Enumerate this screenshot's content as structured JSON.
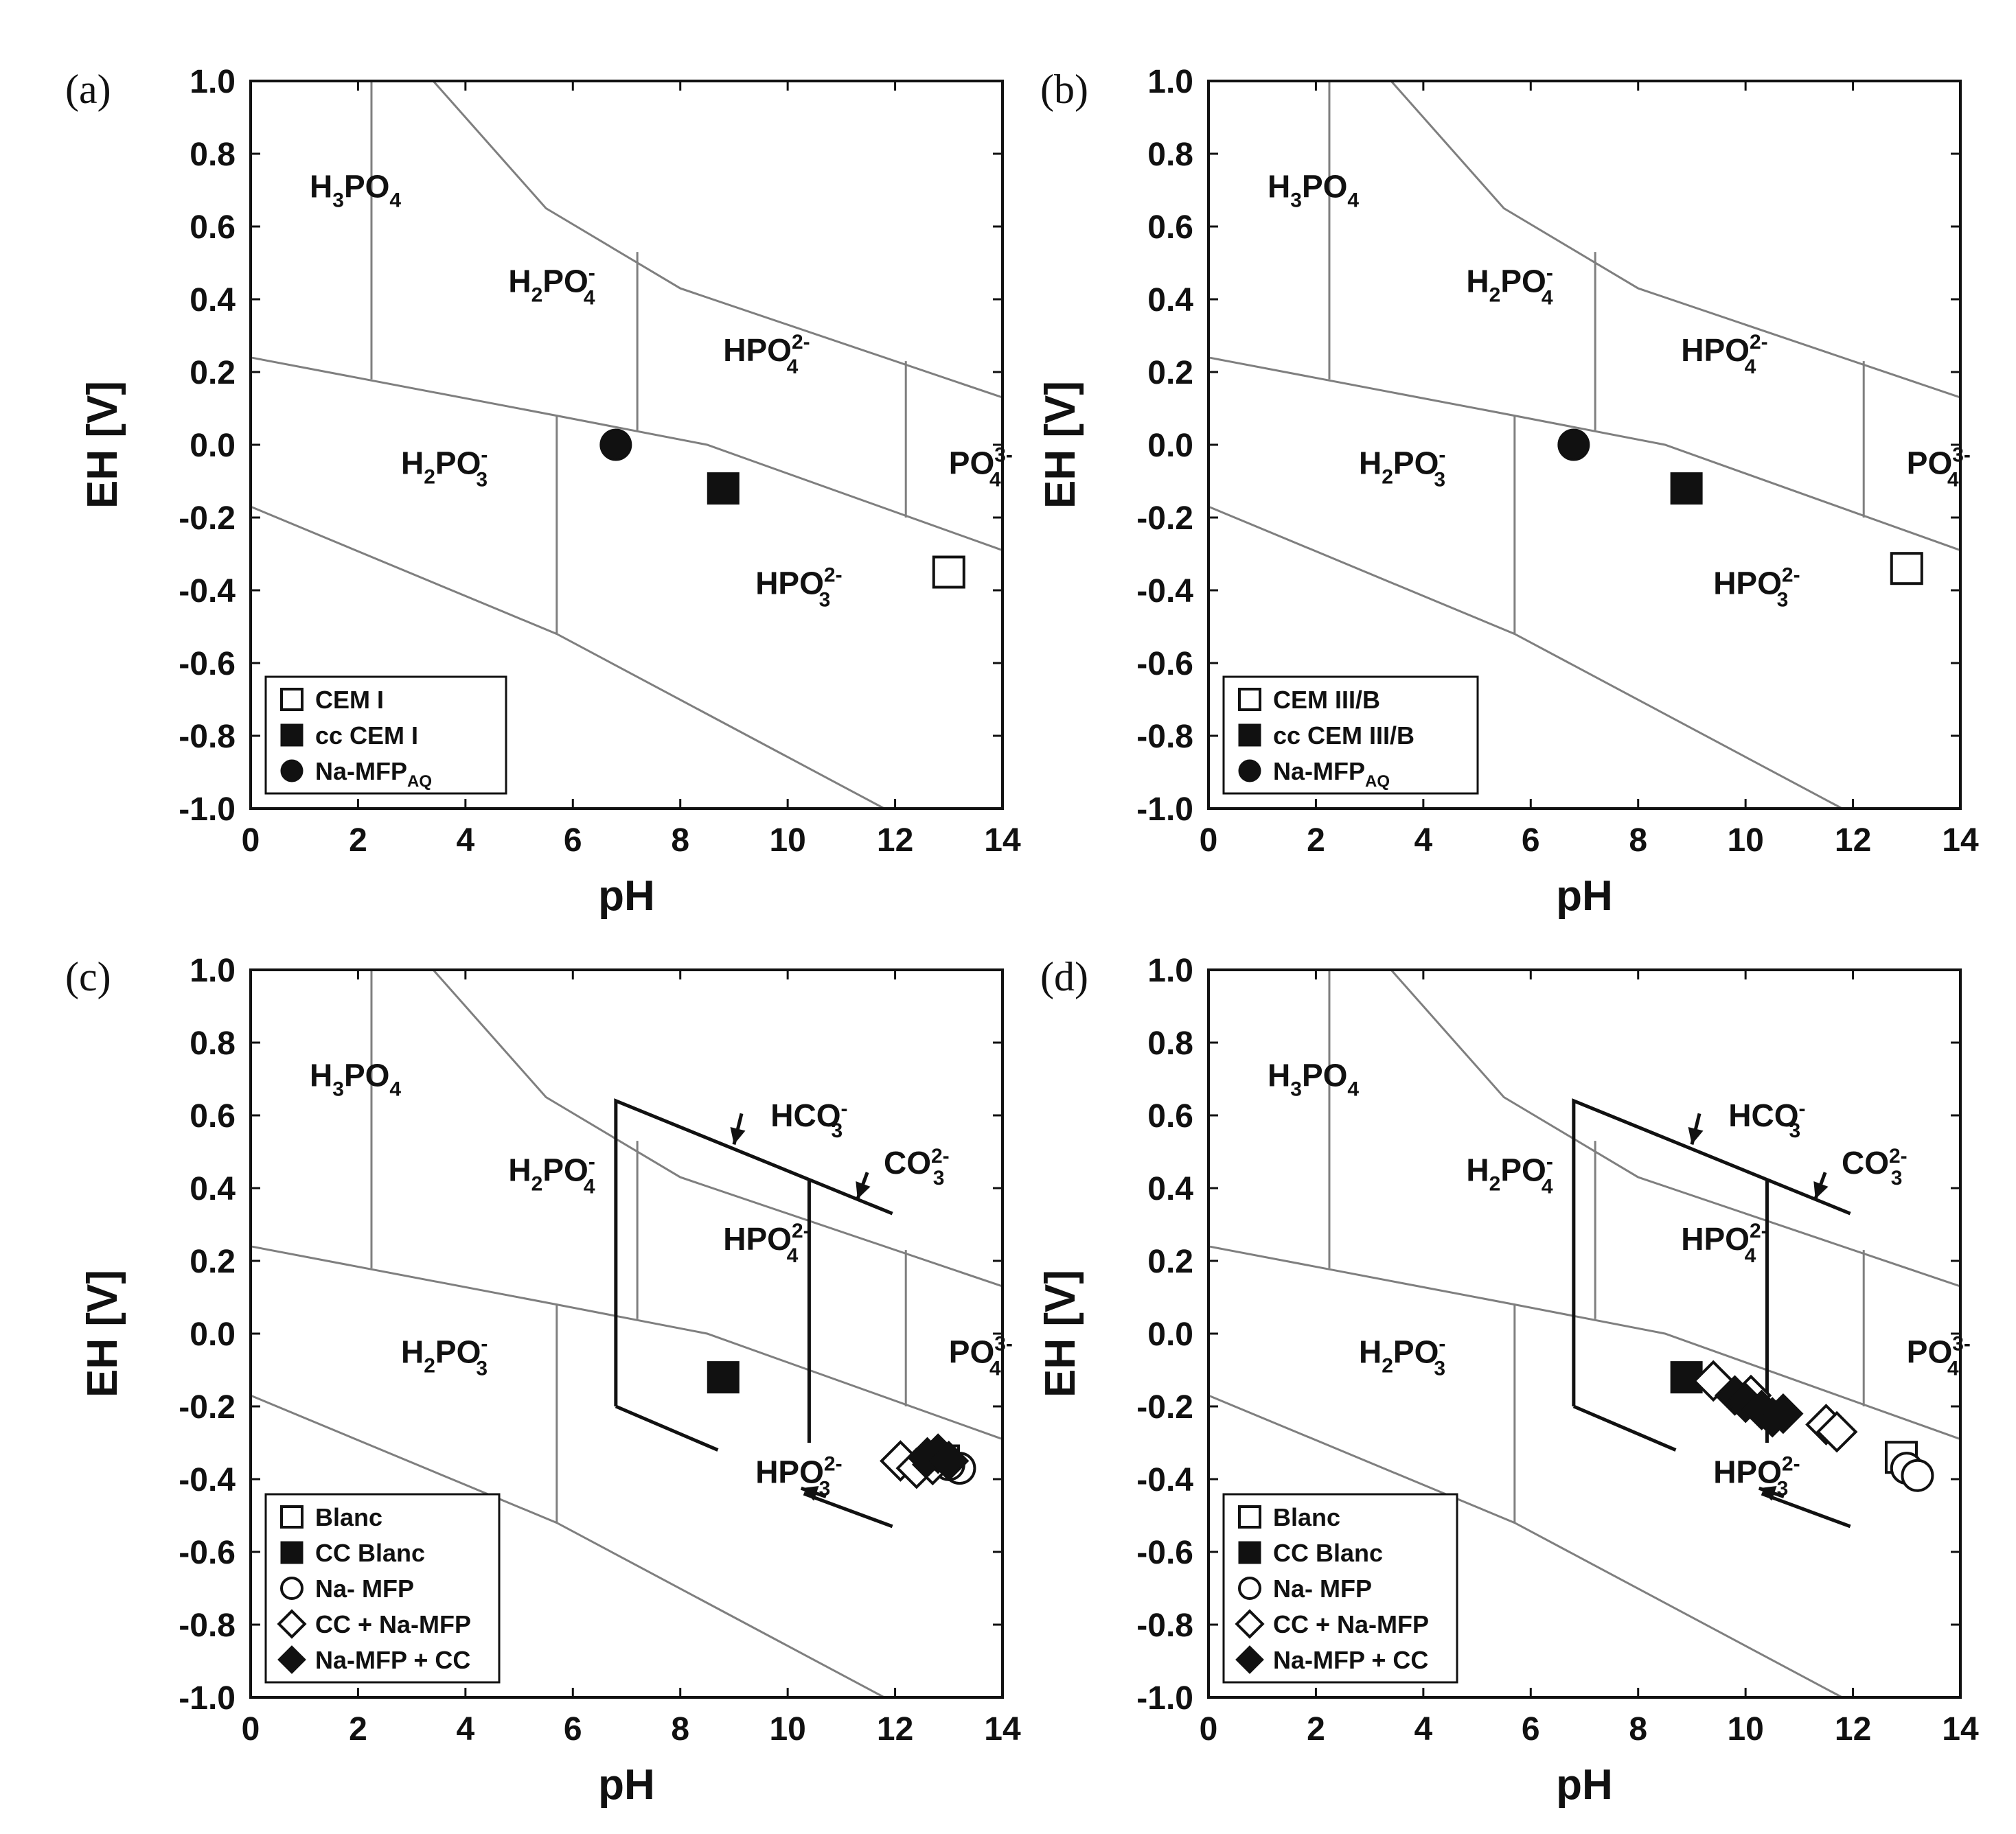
{
  "chart_data": [
    {
      "panel": "(a)",
      "type": "scatter",
      "xlabel": "pH",
      "ylabel": "EH [V]",
      "xlim": [
        0,
        14
      ],
      "ylim": [
        -1.0,
        1.0
      ],
      "xticks": [
        "0",
        "2",
        "4",
        "6",
        "8",
        "10",
        "12",
        "14"
      ],
      "yticks": [
        "1.0",
        "0.8",
        "0.6",
        "0.4",
        "0.2",
        "0.0",
        "-0.2",
        "-0.4",
        "-0.6",
        "-0.8",
        "-1.0"
      ],
      "species_labels": [
        {
          "base": "H",
          "s1": "3",
          "mid": "PO",
          "s2": "4",
          "sup": "",
          "x": 1.1,
          "y": 0.68
        },
        {
          "base": "H",
          "s1": "2",
          "mid": "PO",
          "s2": "4",
          "sup": "-",
          "x": 4.8,
          "y": 0.42
        },
        {
          "base": "",
          "s1": "",
          "mid": "HPO",
          "s2": "4",
          "sup": "2-",
          "x": 8.8,
          "y": 0.23
        },
        {
          "base": "",
          "s1": "",
          "mid": "PO",
          "s2": "4",
          "sup": "3-",
          "x": 13.0,
          "y": -0.08
        },
        {
          "base": "H",
          "s1": "2",
          "mid": "PO",
          "s2": "3",
          "sup": "-",
          "x": 2.8,
          "y": -0.08
        },
        {
          "base": "",
          "s1": "",
          "mid": "HPO",
          "s2": "3",
          "sup": "2-",
          "x": 9.4,
          "y": -0.41
        }
      ],
      "carbonate_labels": [],
      "series": [
        {
          "name": "CEM I",
          "marker": "square-open",
          "points": [
            [
              13.0,
              -0.35
            ]
          ]
        },
        {
          "name": "cc CEM I",
          "marker": "square-filled",
          "points": [
            [
              8.8,
              -0.12
            ]
          ]
        },
        {
          "name": "Na-MFP",
          "name_sub": "AQ",
          "marker": "circle-filled",
          "points": [
            [
              6.8,
              0.0
            ]
          ]
        }
      ]
    },
    {
      "panel": "(b)",
      "type": "scatter",
      "xlabel": "pH",
      "ylabel": "EH [V]",
      "xlim": [
        0,
        14
      ],
      "ylim": [
        -1.0,
        1.0
      ],
      "xticks": [
        "0",
        "2",
        "4",
        "6",
        "8",
        "10",
        "12",
        "14"
      ],
      "yticks": [
        "1.0",
        "0.8",
        "0.6",
        "0.4",
        "0.2",
        "0.0",
        "-0.2",
        "-0.4",
        "-0.6",
        "-0.8",
        "-1.0"
      ],
      "species_labels": [
        {
          "base": "H",
          "s1": "3",
          "mid": "PO",
          "s2": "4",
          "sup": "",
          "x": 1.1,
          "y": 0.68
        },
        {
          "base": "H",
          "s1": "2",
          "mid": "PO",
          "s2": "4",
          "sup": "-",
          "x": 4.8,
          "y": 0.42
        },
        {
          "base": "",
          "s1": "",
          "mid": "HPO",
          "s2": "4",
          "sup": "2-",
          "x": 8.8,
          "y": 0.23
        },
        {
          "base": "",
          "s1": "",
          "mid": "PO",
          "s2": "4",
          "sup": "3-",
          "x": 13.0,
          "y": -0.08
        },
        {
          "base": "H",
          "s1": "2",
          "mid": "PO",
          "s2": "3",
          "sup": "-",
          "x": 2.8,
          "y": -0.08
        },
        {
          "base": "",
          "s1": "",
          "mid": "HPO",
          "s2": "3",
          "sup": "2-",
          "x": 9.4,
          "y": -0.41
        }
      ],
      "carbonate_labels": [],
      "series": [
        {
          "name": "CEM III/B",
          "marker": "square-open",
          "points": [
            [
              13.0,
              -0.34
            ]
          ]
        },
        {
          "name": "cc CEM III/B",
          "marker": "square-filled",
          "points": [
            [
              8.9,
              -0.12
            ]
          ]
        },
        {
          "name": "Na-MFP",
          "name_sub": "AQ",
          "marker": "circle-filled",
          "points": [
            [
              6.8,
              0.0
            ]
          ]
        }
      ]
    },
    {
      "panel": "(c)",
      "type": "scatter",
      "xlabel": "pH",
      "ylabel": "EH [V]",
      "xlim": [
        0,
        14
      ],
      "ylim": [
        -1.0,
        1.0
      ],
      "xticks": [
        "0",
        "2",
        "4",
        "6",
        "8",
        "10",
        "12",
        "14"
      ],
      "yticks": [
        "1.0",
        "0.8",
        "0.6",
        "0.4",
        "0.2",
        "0.0",
        "-0.2",
        "-0.4",
        "-0.6",
        "-0.8",
        "-1.0"
      ],
      "species_labels": [
        {
          "base": "H",
          "s1": "3",
          "mid": "PO",
          "s2": "4",
          "sup": "",
          "x": 1.1,
          "y": 0.68
        },
        {
          "base": "H",
          "s1": "2",
          "mid": "PO",
          "s2": "4",
          "sup": "-",
          "x": 4.8,
          "y": 0.42
        },
        {
          "base": "",
          "s1": "",
          "mid": "HPO",
          "s2": "4",
          "sup": "2-",
          "x": 8.8,
          "y": 0.23
        },
        {
          "base": "",
          "s1": "",
          "mid": "PO",
          "s2": "4",
          "sup": "3-",
          "x": 13.0,
          "y": -0.08
        },
        {
          "base": "H",
          "s1": "2",
          "mid": "PO",
          "s2": "3",
          "sup": "-",
          "x": 2.8,
          "y": -0.08
        },
        {
          "base": "",
          "s1": "",
          "mid": "HPO",
          "s2": "3",
          "sup": "2-",
          "x": 9.4,
          "y": -0.41
        }
      ],
      "carbonate_labels": [
        {
          "base": "HCO",
          "sub": "3",
          "sup": "-",
          "x": 10.4,
          "y": 0.57
        },
        {
          "base": "CO",
          "sub": "3",
          "sup": "2-",
          "x": 12.4,
          "y": 0.44
        }
      ],
      "series": [
        {
          "name": "Blanc",
          "marker": "square-open",
          "points": [
            [
              12.9,
              -0.35
            ]
          ]
        },
        {
          "name": "CC Blanc",
          "marker": "square-filled",
          "points": [
            [
              8.8,
              -0.12
            ]
          ]
        },
        {
          "name": "Na- MFP",
          "marker": "circle-open",
          "points": [
            [
              13.2,
              -0.37
            ],
            [
              13.0,
              -0.36
            ]
          ]
        },
        {
          "name": "CC + Na-MFP",
          "marker": "diamond-open",
          "points": [
            [
              12.1,
              -0.35
            ],
            [
              12.4,
              -0.37
            ],
            [
              12.7,
              -0.36
            ]
          ]
        },
        {
          "name": "Na-MFP + CC",
          "marker": "diamond-filled",
          "points": [
            [
              12.6,
              -0.34
            ],
            [
              12.8,
              -0.33
            ],
            [
              13.0,
              -0.35
            ]
          ]
        }
      ]
    },
    {
      "panel": "(d)",
      "type": "scatter",
      "xlabel": "pH",
      "ylabel": "EH [V]",
      "xlim": [
        0,
        14
      ],
      "ylim": [
        -1.0,
        1.0
      ],
      "xticks": [
        "0",
        "2",
        "4",
        "6",
        "8",
        "10",
        "12",
        "14"
      ],
      "yticks": [
        "1.0",
        "0.8",
        "0.6",
        "0.4",
        "0.2",
        "0.0",
        "-0.2",
        "-0.4",
        "-0.6",
        "-0.8",
        "-1.0"
      ],
      "species_labels": [
        {
          "base": "H",
          "s1": "3",
          "mid": "PO",
          "s2": "4",
          "sup": "",
          "x": 1.1,
          "y": 0.68
        },
        {
          "base": "H",
          "s1": "2",
          "mid": "PO",
          "s2": "4",
          "sup": "-",
          "x": 4.8,
          "y": 0.42
        },
        {
          "base": "",
          "s1": "",
          "mid": "HPO",
          "s2": "4",
          "sup": "2-",
          "x": 8.8,
          "y": 0.23
        },
        {
          "base": "",
          "s1": "",
          "mid": "PO",
          "s2": "4",
          "sup": "3-",
          "x": 13.0,
          "y": -0.08
        },
        {
          "base": "H",
          "s1": "2",
          "mid": "PO",
          "s2": "3",
          "sup": "-",
          "x": 2.8,
          "y": -0.08
        },
        {
          "base": "",
          "s1": "",
          "mid": "HPO",
          "s2": "3",
          "sup": "2-",
          "x": 9.4,
          "y": -0.41
        }
      ],
      "carbonate_labels": [
        {
          "base": "HCO",
          "sub": "3",
          "sup": "-",
          "x": 10.4,
          "y": 0.57
        },
        {
          "base": "CO",
          "sub": "3",
          "sup": "2-",
          "x": 12.4,
          "y": 0.44
        }
      ],
      "series": [
        {
          "name": "Blanc",
          "marker": "square-open",
          "points": [
            [
              12.9,
              -0.34
            ]
          ]
        },
        {
          "name": "CC Blanc",
          "marker": "square-filled",
          "points": [
            [
              8.9,
              -0.12
            ]
          ]
        },
        {
          "name": "Na- MFP",
          "marker": "circle-open",
          "points": [
            [
              13.0,
              -0.37
            ],
            [
              13.2,
              -0.39
            ]
          ]
        },
        {
          "name": "CC + Na-MFP",
          "marker": "diamond-open",
          "points": [
            [
              9.4,
              -0.13
            ],
            [
              10.1,
              -0.17
            ],
            [
              11.5,
              -0.25
            ],
            [
              11.7,
              -0.27
            ]
          ]
        },
        {
          "name": "Na-MFP + CC",
          "marker": "diamond-filled",
          "points": [
            [
              9.8,
              -0.17
            ],
            [
              10.0,
              -0.19
            ],
            [
              10.3,
              -0.21
            ],
            [
              10.5,
              -0.23
            ],
            [
              10.7,
              -0.22
            ]
          ]
        }
      ]
    }
  ]
}
